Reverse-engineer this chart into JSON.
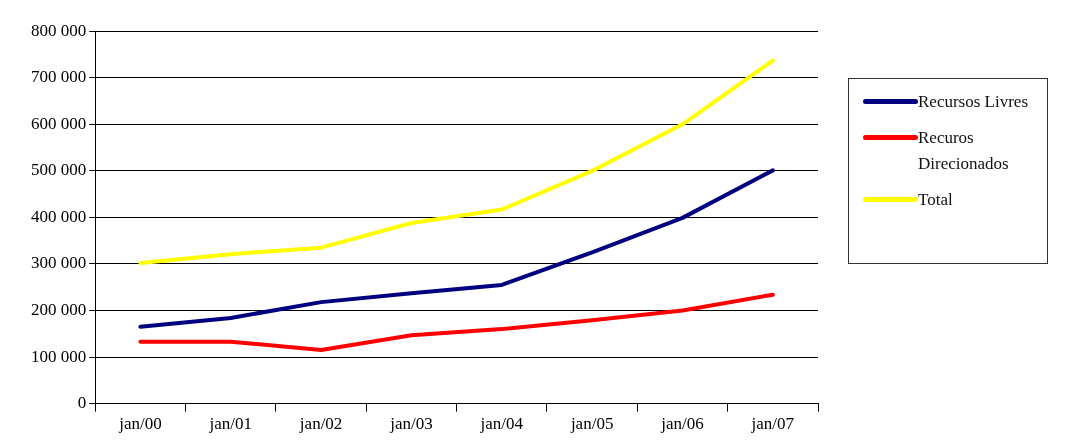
{
  "chart_data": {
    "type": "line",
    "categories": [
      "jan/00",
      "jan/01",
      "jan/02",
      "jan/03",
      "jan/04",
      "jan/05",
      "jan/06",
      "jan/07"
    ],
    "series": [
      {
        "name": "Recursos Livres",
        "color": "#000080",
        "values": [
          165000,
          184000,
          218000,
          237000,
          255000,
          325000,
          399000,
          501000
        ]
      },
      {
        "name": "Recuros Direcionados",
        "color": "#ff0000",
        "values": [
          133000,
          133000,
          115000,
          147000,
          160000,
          179000,
          200000,
          234000
        ]
      },
      {
        "name": "Total",
        "color": "#ffff00",
        "values": [
          302000,
          321000,
          335000,
          388000,
          417000,
          500000,
          600000,
          737000
        ]
      }
    ],
    "ylim": [
      0,
      800000
    ],
    "yticks": [
      {
        "value": 0,
        "label": "0"
      },
      {
        "value": 100000,
        "label": "100 000"
      },
      {
        "value": 200000,
        "label": "200 000"
      },
      {
        "value": 300000,
        "label": "300 000"
      },
      {
        "value": 400000,
        "label": "400 000"
      },
      {
        "value": 500000,
        "label": "500 000"
      },
      {
        "value": 600000,
        "label": "600 000"
      },
      {
        "value": 700000,
        "label": "700 000"
      },
      {
        "value": 800000,
        "label": "800 000"
      }
    ],
    "grid": "y",
    "legend": "right",
    "marker": "none",
    "line_style": "solid"
  }
}
